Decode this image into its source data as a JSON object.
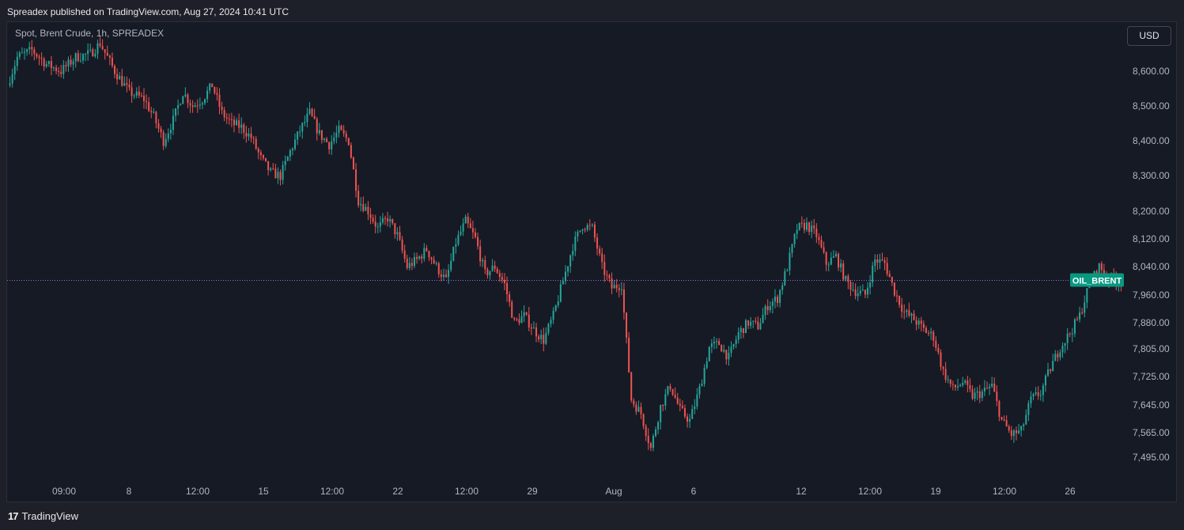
{
  "header": {
    "publisher_text": "Spreadex published on TradingView.com, Aug 27, 2024 10:41 UTC"
  },
  "symbol": {
    "label": "Spot, Brent Crude, 1h, SPREADEX"
  },
  "toolbar": {
    "currency_label": "USD"
  },
  "footer": {
    "logo_mark": "17",
    "brand": "TradingView"
  },
  "colors": {
    "background": "#161a25",
    "up_candle": "#26a69a",
    "down_candle": "#ef5350",
    "price_line": "#9c6fdc",
    "price_badge": "#089981"
  },
  "chart_data": {
    "type": "candlestick",
    "title": "Spot, Brent Crude, 1h, SPREADEX",
    "currency": "USD",
    "x_ticks": [
      "09:00",
      "8",
      "12:00",
      "15",
      "12:00",
      "22",
      "12:00",
      "29",
      "Aug",
      "6",
      "12",
      "12:00",
      "19",
      "12:00",
      "26"
    ],
    "y_ticks": [
      "8,600.00",
      "8,500.00",
      "8,400.00",
      "8,300.00",
      "8,200.00",
      "8,120.00",
      "8,040.00",
      "7,960.00",
      "7,880.00",
      "7,805.00",
      "7,725.00",
      "7,645.00",
      "7,565.00",
      "7,495.00"
    ],
    "y_range": [
      7465,
      8660
    ],
    "last_price": 8001,
    "price_label": "OIL_BRENT",
    "grid": false,
    "series": [
      {
        "anchors": [
          [
            0,
            8560
          ],
          [
            4,
            8640
          ],
          [
            10,
            8660
          ],
          [
            16,
            8620
          ],
          [
            22,
            8600
          ],
          [
            28,
            8640
          ],
          [
            34,
            8650
          ],
          [
            38,
            8680
          ],
          [
            44,
            8600
          ],
          [
            50,
            8540
          ],
          [
            56,
            8520
          ],
          [
            60,
            8470
          ],
          [
            64,
            8400
          ],
          [
            68,
            8460
          ],
          [
            72,
            8540
          ],
          [
            76,
            8500
          ],
          [
            80,
            8520
          ],
          [
            84,
            8560
          ],
          [
            88,
            8480
          ],
          [
            92,
            8450
          ],
          [
            96,
            8440
          ],
          [
            100,
            8410
          ],
          [
            104,
            8350
          ],
          [
            108,
            8310
          ],
          [
            112,
            8300
          ],
          [
            116,
            8370
          ],
          [
            120,
            8430
          ],
          [
            124,
            8480
          ],
          [
            128,
            8420
          ],
          [
            132,
            8390
          ],
          [
            136,
            8430
          ],
          [
            140,
            8400
          ],
          [
            144,
            8230
          ],
          [
            148,
            8200
          ],
          [
            152,
            8150
          ],
          [
            156,
            8180
          ],
          [
            160,
            8130
          ],
          [
            164,
            8040
          ],
          [
            168,
            8060
          ],
          [
            172,
            8090
          ],
          [
            176,
            8040
          ],
          [
            180,
            8000
          ],
          [
            184,
            8110
          ],
          [
            188,
            8170
          ],
          [
            192,
            8120
          ],
          [
            196,
            8020
          ],
          [
            200,
            8040
          ],
          [
            204,
            7990
          ],
          [
            208,
            7880
          ],
          [
            212,
            7900
          ],
          [
            216,
            7860
          ],
          [
            220,
            7830
          ],
          [
            224,
            7900
          ],
          [
            228,
            8000
          ],
          [
            232,
            8100
          ],
          [
            236,
            8160
          ],
          [
            240,
            8150
          ],
          [
            244,
            8040
          ],
          [
            248,
            7980
          ],
          [
            252,
            7990
          ],
          [
            256,
            7660
          ],
          [
            260,
            7620
          ],
          [
            264,
            7520
          ],
          [
            268,
            7640
          ],
          [
            272,
            7700
          ],
          [
            276,
            7630
          ],
          [
            280,
            7600
          ],
          [
            284,
            7690
          ],
          [
            288,
            7810
          ],
          [
            292,
            7820
          ],
          [
            296,
            7780
          ],
          [
            300,
            7850
          ],
          [
            304,
            7880
          ],
          [
            308,
            7870
          ],
          [
            312,
            7930
          ],
          [
            316,
            7950
          ],
          [
            320,
            8040
          ],
          [
            324,
            8150
          ],
          [
            328,
            8160
          ],
          [
            332,
            8130
          ],
          [
            336,
            8050
          ],
          [
            340,
            8070
          ],
          [
            344,
            8000
          ],
          [
            348,
            7970
          ],
          [
            352,
            7960
          ],
          [
            356,
            8060
          ],
          [
            360,
            8050
          ],
          [
            364,
            7970
          ],
          [
            368,
            7910
          ],
          [
            372,
            7890
          ],
          [
            376,
            7860
          ],
          [
            380,
            7840
          ],
          [
            384,
            7740
          ],
          [
            388,
            7690
          ],
          [
            392,
            7710
          ],
          [
            396,
            7670
          ],
          [
            400,
            7680
          ],
          [
            404,
            7700
          ],
          [
            408,
            7600
          ],
          [
            412,
            7560
          ],
          [
            416,
            7570
          ],
          [
            420,
            7660
          ],
          [
            424,
            7680
          ],
          [
            428,
            7750
          ],
          [
            432,
            7810
          ],
          [
            436,
            7850
          ],
          [
            440,
            7900
          ],
          [
            444,
            7990
          ],
          [
            448,
            8040
          ],
          [
            452,
            8010
          ],
          [
            456,
            8000
          ]
        ]
      }
    ]
  }
}
